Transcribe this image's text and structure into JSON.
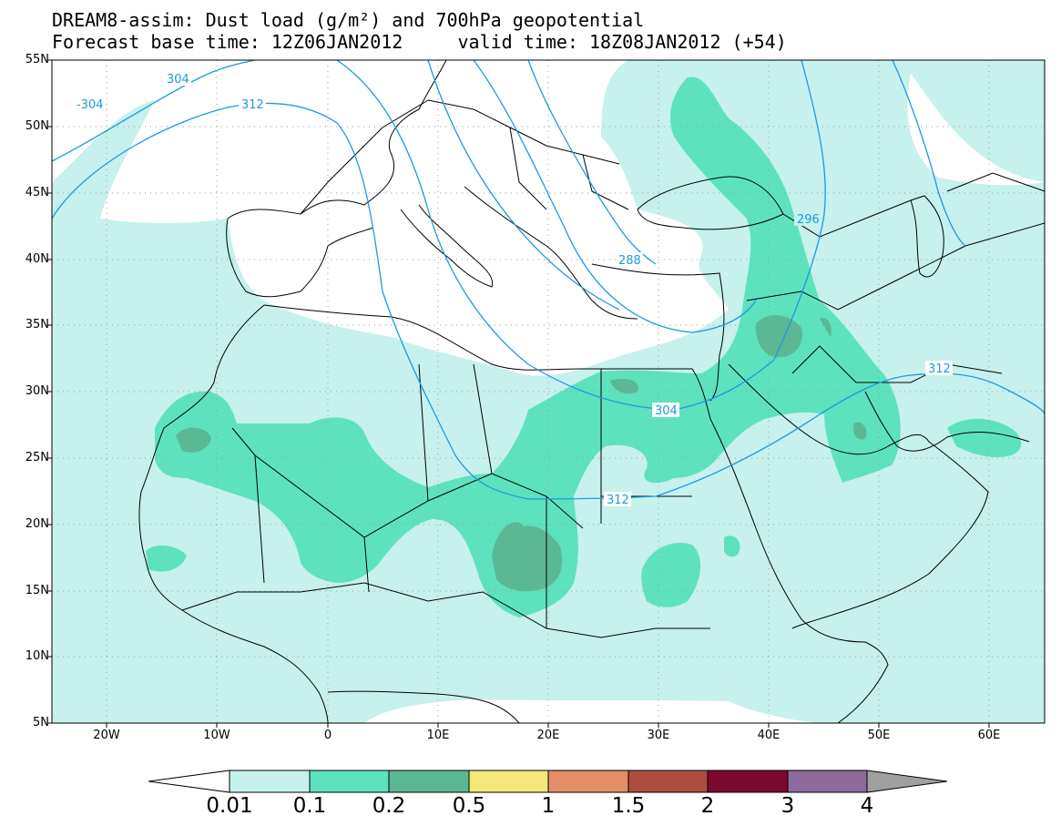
{
  "title": {
    "line1": "DREAM8-assim: Dust load (g/m²) and 700hPa geopotential",
    "line2": "Forecast base time: 12Z06JAN2012     valid time: 18Z08JAN2012 (+54)"
  },
  "axes": {
    "lat_labels": [
      "55N",
      "50N",
      "45N",
      "40N",
      "35N",
      "30N",
      "25N",
      "20N",
      "15N",
      "10N",
      "5N"
    ],
    "lon_labels": [
      "20W",
      "10W",
      "0",
      "10E",
      "20E",
      "30E",
      "40E",
      "50E",
      "60E"
    ]
  },
  "contour_labels": [
    "-304",
    "304",
    "312",
    "296",
    "288",
    "304",
    "312",
    "312"
  ],
  "colorbar": {
    "labels": [
      "0.01",
      "0.1",
      "0.2",
      "0.5",
      "1",
      "1.5",
      "2",
      "3",
      "4"
    ],
    "colors": [
      "#ffffff",
      "#c6f1ec",
      "#5de2bd",
      "#5bb895",
      "#f3e77a",
      "#e38e66",
      "#ad4d3f",
      "#7c0a2e",
      "#8d6c9d",
      "#a0a0a0"
    ]
  }
}
